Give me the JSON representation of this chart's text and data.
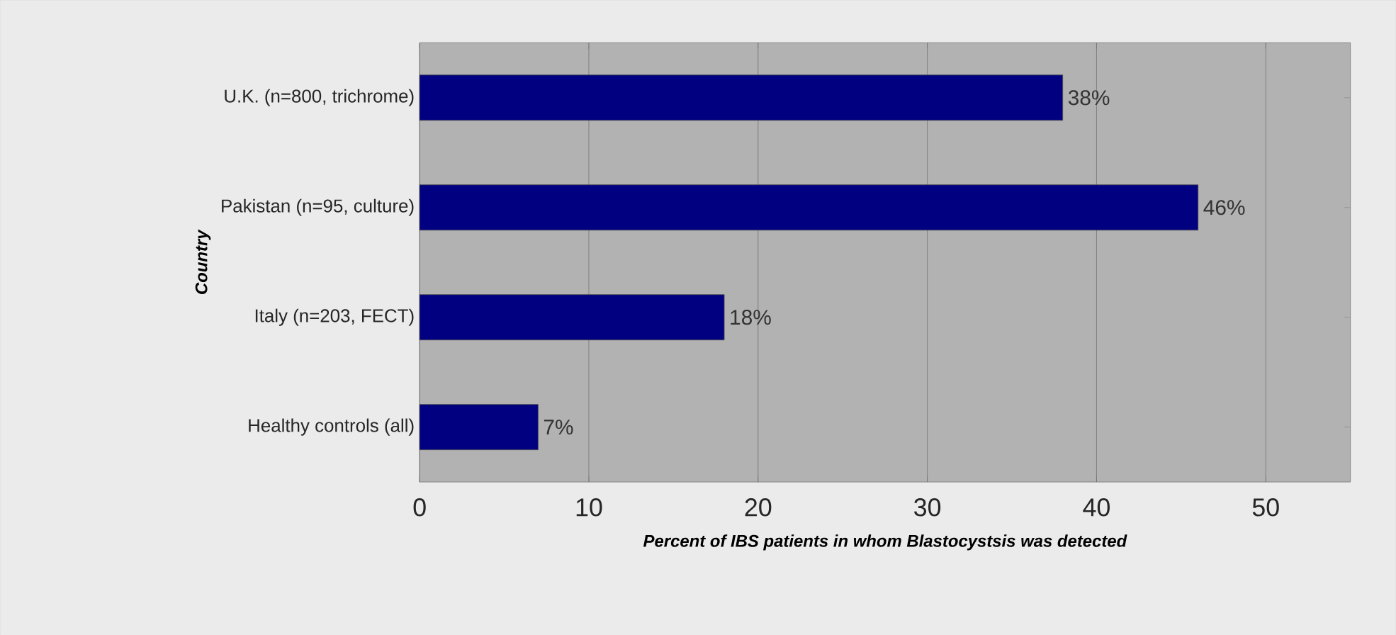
{
  "chart_data": {
    "type": "bar",
    "orientation": "horizontal",
    "xlabel": "Percent of IBS patients in whom Blastocystsis was detected",
    "ylabel": "Country",
    "categories": [
      "U.K. (n=800, trichrome)",
      "Pakistan (n=95, culture)",
      "Italy (n=203, FECT)",
      "Healthy controls (all)"
    ],
    "values": [
      38,
      46,
      18,
      7
    ],
    "value_labels": [
      "38%",
      "46%",
      "18%",
      "7%"
    ],
    "color": "#000080",
    "xlim": [
      0,
      55
    ],
    "xticks": [
      0,
      10,
      20,
      30,
      40,
      50
    ],
    "grid": "x"
  }
}
